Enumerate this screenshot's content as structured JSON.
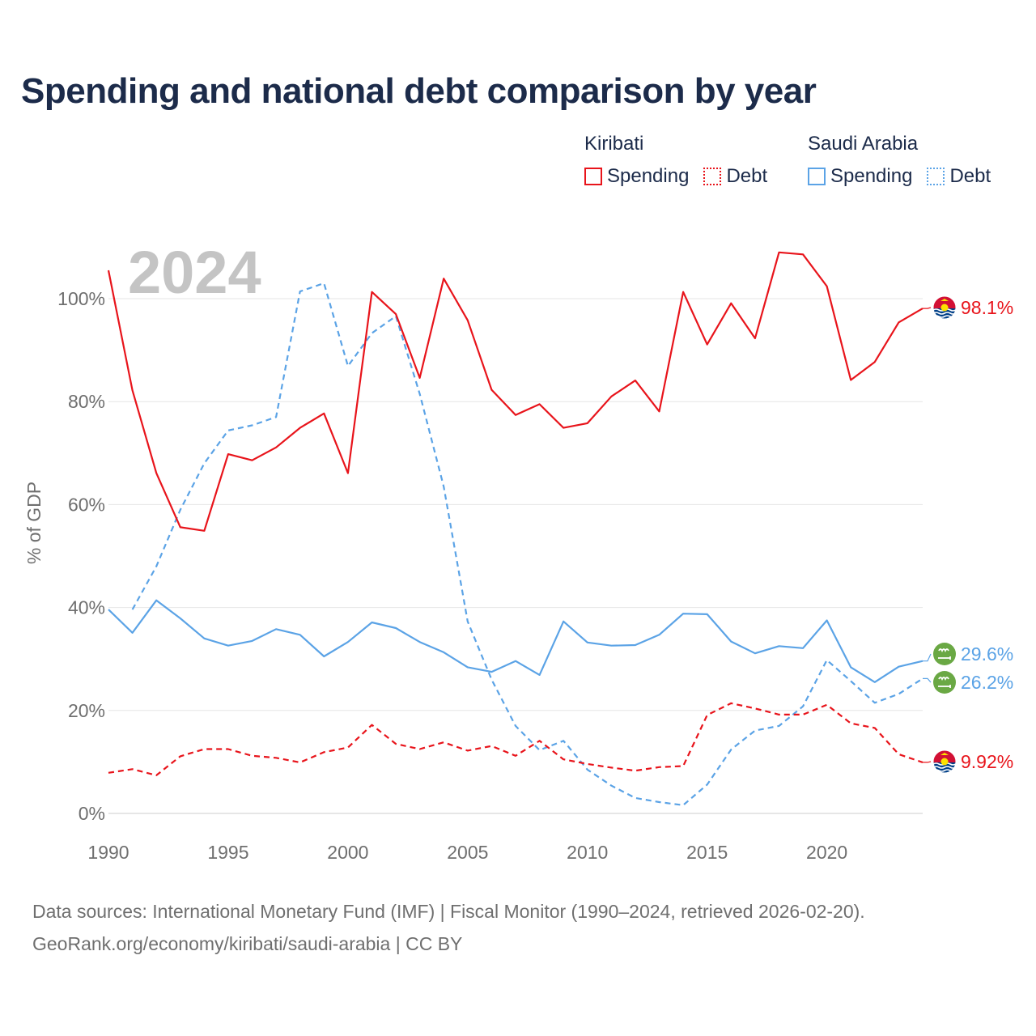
{
  "title": "Spending and national debt comparison by year",
  "legend": {
    "groups": [
      {
        "country": "Kiribati",
        "items": [
          {
            "label": "Spending",
            "style": "solid",
            "color": "#e8141b"
          },
          {
            "label": "Debt",
            "style": "dotted",
            "color": "#e8141b"
          }
        ]
      },
      {
        "country": "Saudi Arabia",
        "items": [
          {
            "label": "Spending",
            "style": "solid",
            "color": "#5ba3e6"
          },
          {
            "label": "Debt",
            "style": "dotted",
            "color": "#5ba3e6"
          }
        ]
      }
    ]
  },
  "year_label": "2024",
  "footer": {
    "sources": "Data sources: International Monetary Fund (IMF) | Fiscal Monitor (1990–2024, retrieved 2026-02-20).",
    "credit": "GeoRank.org/economy/kiribati/saudi-arabia | CC BY"
  },
  "chart_data": {
    "type": "line",
    "ylabel": "% of GDP",
    "xlabel": "",
    "xlim": [
      1990,
      2024
    ],
    "ylim": [
      0,
      110
    ],
    "yticks": [
      0,
      20,
      40,
      60,
      80,
      100
    ],
    "ytick_labels": [
      "0%",
      "20%",
      "40%",
      "60%",
      "80%",
      "100%"
    ],
    "xticks": [
      1990,
      1995,
      2000,
      2005,
      2010,
      2015,
      2020
    ],
    "xtick_labels": [
      "1990",
      "1995",
      "2000",
      "2005",
      "2010",
      "2015",
      "2020"
    ],
    "grid": "horizontal",
    "series": [
      {
        "name": "Kiribati Spending",
        "country": "Kiribati",
        "style": "solid",
        "color": "#e8141b",
        "x": [
          1990,
          1991,
          1992,
          1993,
          1994,
          1995,
          1996,
          1997,
          1998,
          1999,
          2000,
          2001,
          2002,
          2003,
          2004,
          2005,
          2006,
          2007,
          2008,
          2009,
          2010,
          2011,
          2012,
          2013,
          2014,
          2015,
          2016,
          2017,
          2018,
          2019,
          2020,
          2021,
          2022,
          2023,
          2024
        ],
        "values": [
          105.5,
          82.2,
          66.1,
          55.6,
          54.9,
          69.8,
          68.6,
          71.1,
          74.9,
          77.7,
          66.1,
          101.3,
          97.0,
          84.6,
          103.9,
          95.8,
          82.3,
          77.4,
          79.5,
          74.9,
          75.8,
          81.0,
          84.1,
          78.1,
          101.3,
          91.1,
          99.1,
          92.3,
          109.0,
          108.6,
          102.4,
          84.2,
          87.7,
          95.4,
          98.1
        ],
        "end_label": "98.1%",
        "flag_icon": "kiribati-flag-icon"
      },
      {
        "name": "Kiribati Debt",
        "country": "Kiribati",
        "style": "dashed",
        "color": "#e8141b",
        "x": [
          1990,
          1991,
          1992,
          1993,
          1994,
          1995,
          1996,
          1997,
          1998,
          1999,
          2000,
          2001,
          2002,
          2003,
          2004,
          2005,
          2006,
          2007,
          2008,
          2009,
          2010,
          2011,
          2012,
          2013,
          2014,
          2015,
          2016,
          2017,
          2018,
          2019,
          2020,
          2021,
          2022,
          2023,
          2024
        ],
        "values": [
          7.9,
          8.6,
          7.4,
          11.1,
          12.5,
          12.5,
          11.2,
          10.8,
          9.9,
          11.9,
          12.8,
          17.2,
          13.5,
          12.5,
          13.8,
          12.2,
          13.1,
          11.2,
          14.1,
          10.5,
          9.6,
          8.9,
          8.3,
          9.0,
          9.2,
          19.1,
          21.4,
          20.4,
          19.2,
          19.2,
          21.1,
          17.5,
          16.6,
          11.5,
          9.92
        ],
        "end_label": "9.92%",
        "flag_icon": "kiribati-flag-icon"
      },
      {
        "name": "Saudi Arabia Spending",
        "country": "Saudi Arabia",
        "style": "solid",
        "color": "#5ba3e6",
        "x": [
          1990,
          1991,
          1992,
          1993,
          1994,
          1995,
          1996,
          1997,
          1998,
          1999,
          2000,
          2001,
          2002,
          2003,
          2004,
          2005,
          2006,
          2007,
          2008,
          2009,
          2010,
          2011,
          2012,
          2013,
          2014,
          2015,
          2016,
          2017,
          2018,
          2019,
          2020,
          2021,
          2022,
          2023,
          2024
        ],
        "values": [
          39.6,
          35.1,
          41.4,
          37.9,
          34.0,
          32.6,
          33.5,
          35.8,
          34.7,
          30.5,
          33.3,
          37.1,
          36.0,
          33.3,
          31.3,
          28.4,
          27.5,
          29.6,
          26.9,
          37.3,
          33.2,
          32.6,
          32.7,
          34.7,
          38.8,
          38.7,
          33.4,
          31.1,
          32.5,
          32.1,
          37.5,
          28.4,
          25.5,
          28.5,
          29.6
        ],
        "end_label": "29.6%",
        "flag_icon": "saudi-arabia-flag-icon"
      },
      {
        "name": "Saudi Arabia Debt",
        "country": "Saudi Arabia",
        "style": "dashed",
        "color": "#5ba3e6",
        "x": [
          1991,
          1992,
          1993,
          1994,
          1995,
          1996,
          1997,
          1998,
          1999,
          2000,
          2001,
          2002,
          2003,
          2004,
          2005,
          2006,
          2007,
          2008,
          2009,
          2010,
          2011,
          2012,
          2013,
          2014,
          2015,
          2016,
          2017,
          2018,
          2019,
          2020,
          2021,
          2022,
          2023,
          2024
        ],
        "values": [
          39.6,
          48.0,
          59.0,
          68.0,
          74.4,
          75.4,
          77.0,
          101.4,
          103.0,
          86.9,
          93.3,
          96.6,
          81.5,
          63.5,
          37.3,
          26.0,
          17.0,
          12.3,
          14.1,
          8.5,
          5.4,
          3.0,
          2.2,
          1.6,
          5.6,
          12.4,
          16.1,
          17.0,
          20.8,
          29.8,
          25.7,
          21.5,
          23.2,
          26.2
        ],
        "end_label": "26.2%",
        "flag_icon": "saudi-arabia-flag-icon"
      }
    ]
  }
}
